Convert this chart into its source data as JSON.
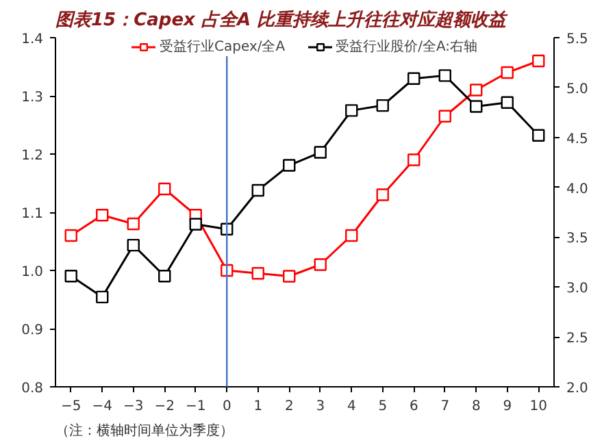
{
  "chart_data": {
    "type": "line",
    "title": "图表15：Capex 占全A 比重持续上升往往对应超额收益",
    "annotations": [
      "（注：横轴时间单位为季度）"
    ],
    "x": [
      -5,
      -4,
      -3,
      -2,
      -1,
      0,
      1,
      2,
      3,
      4,
      5,
      6,
      7,
      8,
      9,
      10
    ],
    "series": [
      {
        "name": "受益行业Capex/全A",
        "color": "#ff0000",
        "values": [
          1.06,
          1.095,
          1.08,
          1.14,
          1.095,
          1.0,
          0.995,
          0.99,
          1.01,
          1.06,
          1.13,
          1.19,
          1.265,
          1.31,
          1.34,
          1.36
        ]
      },
      {
        "name": "受益行业股价/全A:右轴",
        "color": "#000000",
        "axis": "y2",
        "values": [
          3.11,
          2.9,
          3.42,
          3.11,
          3.63,
          3.58,
          3.97,
          4.22,
          4.35,
          4.77,
          4.82,
          5.09,
          5.12,
          4.81,
          4.85,
          4.52
        ]
      }
    ],
    "xlim": [
      -5.5,
      10.5
    ],
    "xticks": [
      -5,
      -4,
      -3,
      -2,
      -1,
      0,
      1,
      2,
      3,
      4,
      5,
      6,
      7,
      8,
      9,
      10
    ],
    "ylim": [
      0.8,
      1.4
    ],
    "yticks": [
      {
        "value": 0.8,
        "label": "0.8"
      },
      {
        "value": 0.9,
        "label": "0.9"
      },
      {
        "value": 1.0,
        "label": "1.0"
      },
      {
        "value": 1.1,
        "label": "1.1"
      },
      {
        "value": 1.2,
        "label": "1.2"
      },
      {
        "value": 1.3,
        "label": "1.3"
      },
      {
        "value": 1.4,
        "label": "1.4"
      }
    ],
    "y2lim": [
      2.0,
      5.5
    ],
    "y2ticks": [
      {
        "value": 2.0,
        "label": "2.0"
      },
      {
        "value": 2.5,
        "label": "2.5"
      },
      {
        "value": 3.0,
        "label": "3.0"
      },
      {
        "value": 3.5,
        "label": "3.5"
      },
      {
        "value": 4.0,
        "label": "4.0"
      },
      {
        "value": 4.5,
        "label": "4.5"
      },
      {
        "value": 5.0,
        "label": "5.0"
      },
      {
        "value": 5.5,
        "label": "5.5"
      }
    ],
    "ref_lines": [
      {
        "axis": "x",
        "value": 0,
        "color": "#4472c4"
      }
    ],
    "marker": "square",
    "line_style": "solid",
    "legend": "top",
    "grid": false
  }
}
